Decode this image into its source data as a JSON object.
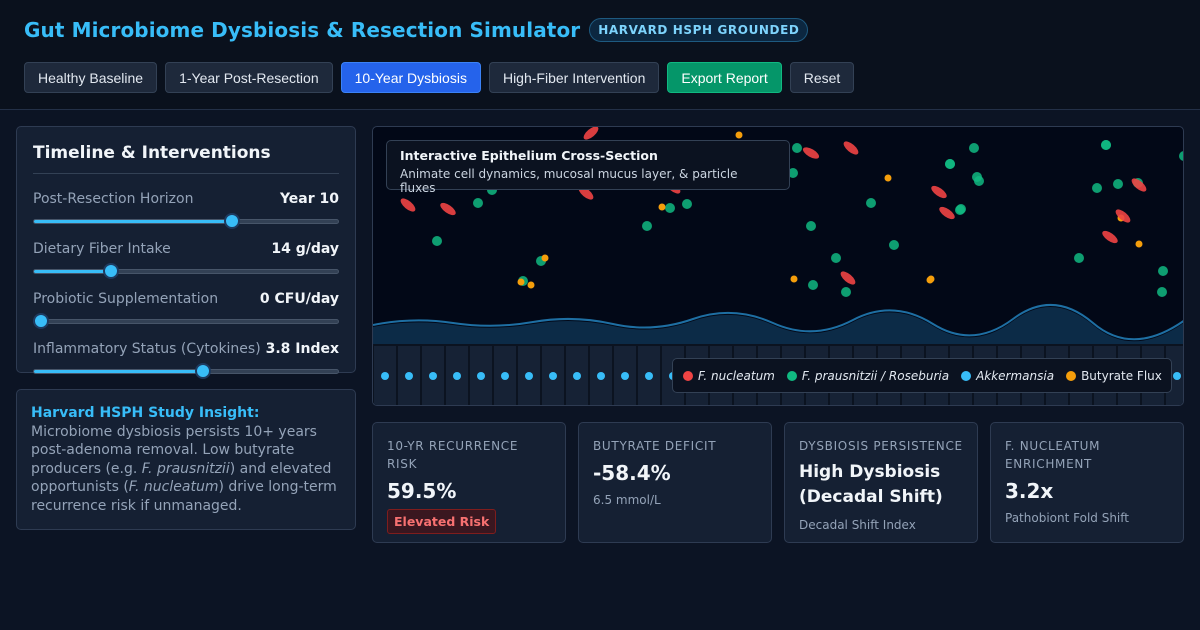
{
  "header": {
    "title": "Gut Microbiome Dysbiosis & Resection Simulator",
    "badge": "HARVARD HSPH GROUNDED",
    "buttons": {
      "healthy": "Healthy Baseline",
      "post1": "1-Year Post-Resection",
      "dys10": "10-Year Dysbiosis",
      "fiber": "High-Fiber Intervention",
      "export": "Export Report",
      "reset": "Reset"
    }
  },
  "controls": {
    "title": "Timeline & Interventions",
    "horizon": {
      "label": "Post-Resection Horizon",
      "value": "Year 10",
      "fraction": 0.66
    },
    "fiber": {
      "label": "Dietary Fiber Intake",
      "value": "14 g/day",
      "fraction": 0.24
    },
    "probiotic": {
      "label": "Probiotic Supplementation",
      "value": "0 CFU/day",
      "fraction": 0.0
    },
    "inflammation": {
      "label": "Inflammatory Status (Cytokines)",
      "value": "3.8 Index",
      "fraction": 0.56
    }
  },
  "insight": {
    "lead": "Harvard HSPH Study Insight:",
    "p1": " Microbiome dysbiosis persists 10+ years post-adenoma removal. Low butyrate producers (e.g. ",
    "i1": "F. prausnitzii",
    "p2": ") and elevated opportunists (",
    "i2": "F. nucleatum",
    "p3": ") drive long-term recurrence risk if unmanaged."
  },
  "viz": {
    "tip_title": "Interactive Epithelium Cross-Section",
    "tip_sub": "Animate cell dynamics, mucosal mucus layer, & particle fluxes",
    "legend": [
      {
        "label": "F. nucleatum",
        "color": "#ef4444"
      },
      {
        "label": "F. prausnitzii / Roseburia",
        "color": "#10b981"
      },
      {
        "label": "Akkermansia",
        "color": "#38bdf8"
      },
      {
        "label": "Butyrate Flux",
        "color": "#f59e0b"
      }
    ]
  },
  "metrics": {
    "recurrence": {
      "label": "10-YR RECURRENCE RISK",
      "value": "59.5%",
      "badge": "Elevated Risk"
    },
    "butyrate": {
      "label": "BUTYRATE DEFICIT",
      "value": "-58.4%",
      "sub": "6.5 mmol/L"
    },
    "persistence": {
      "label": "DYSBIOSIS PERSISTENCE",
      "value": "High Dysbiosis (Decadal Shift)",
      "sub": "Decadal Shift Index"
    },
    "nucleatum": {
      "label": "F. NUCLEATUM ENRICHMENT",
      "value": "3.2x",
      "sub": "Pathobiont Fold Shift"
    }
  },
  "colors": {
    "accent": "#38bdf8",
    "active_button": "#2563eb",
    "export_button": "#059669",
    "risk": "#f87171"
  }
}
